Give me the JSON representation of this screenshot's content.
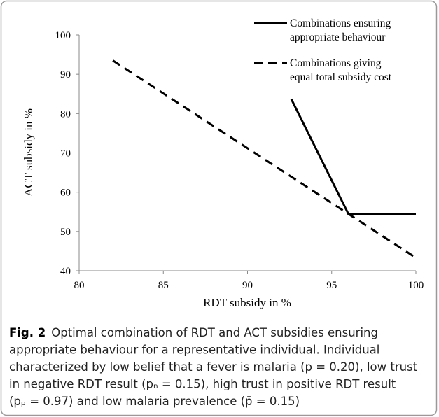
{
  "chart_data": {
    "type": "line",
    "xlabel": "RDT subsidy in %",
    "ylabel": "ACT subsidy in %",
    "xlim": [
      80,
      100
    ],
    "xticks": [
      80,
      85,
      90,
      95,
      100
    ],
    "ylim": [
      40,
      100
    ],
    "yticks": [
      40,
      50,
      60,
      70,
      80,
      90,
      100
    ],
    "legend": "top-right",
    "series": [
      {
        "name": "Combinations ensuring appropriate behaviour",
        "color": "#000000",
        "style": "solid",
        "x": [
          92.6,
          96,
          100
        ],
        "values": [
          83.7,
          54.4,
          54.4
        ]
      },
      {
        "name": "Combinations giving equal total subsidy cost",
        "color": "#000000",
        "style": "dashed",
        "x": [
          82,
          100
        ],
        "values": [
          93.5,
          43.3
        ]
      }
    ],
    "caption": {
      "label": "Fig. 2",
      "lines": [
        "Optimal combination of RDT and ACT subsidies ensuring",
        "appropriate behaviour for a representative individual. Individual",
        "characterized by low belief that a fever is malaria (p = 0.20), low trust",
        "in negative RDT result (pₙ = 0.15), high trust in positive RDT result",
        "(pₚ = 0.97) and low malaria prevalence (p̄ = 0.15)"
      ]
    }
  }
}
